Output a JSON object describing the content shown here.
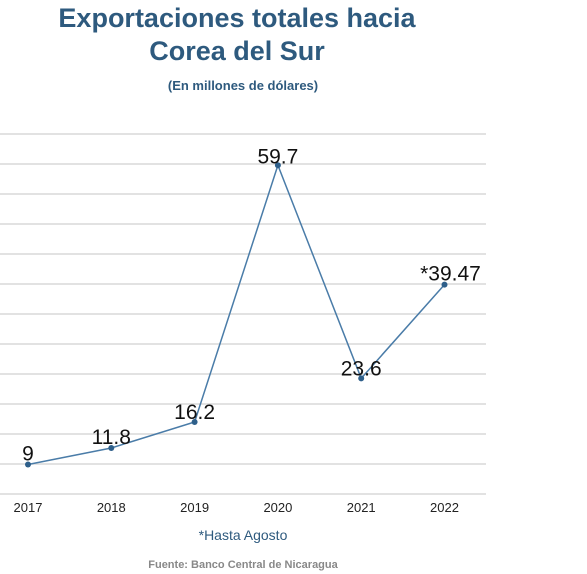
{
  "colors": {
    "title": "#2e5a7e",
    "line": "#4a7ca8",
    "point": "#2e5f8a",
    "grid": "#d9d9d9",
    "source": "#888888"
  },
  "chart_data": {
    "type": "line",
    "title_lines": [
      "Exportaciones totales hacia",
      "Corea del Sur"
    ],
    "subtitle": "(En millones de dólares)",
    "categories": [
      "2017",
      "2018",
      "2019",
      "2020",
      "2021",
      "2022"
    ],
    "values": [
      9,
      11.8,
      16.2,
      59.7,
      23.6,
      39.47
    ],
    "data_labels": [
      "9",
      "11.8",
      "16.2",
      "59.7",
      "23.6",
      "*39.47"
    ],
    "note": "*Hasta Agosto",
    "source": "Fuente: Banco Central de Nicaragua",
    "ylim": [
      4,
      65
    ],
    "grid": true,
    "legend": "none"
  }
}
